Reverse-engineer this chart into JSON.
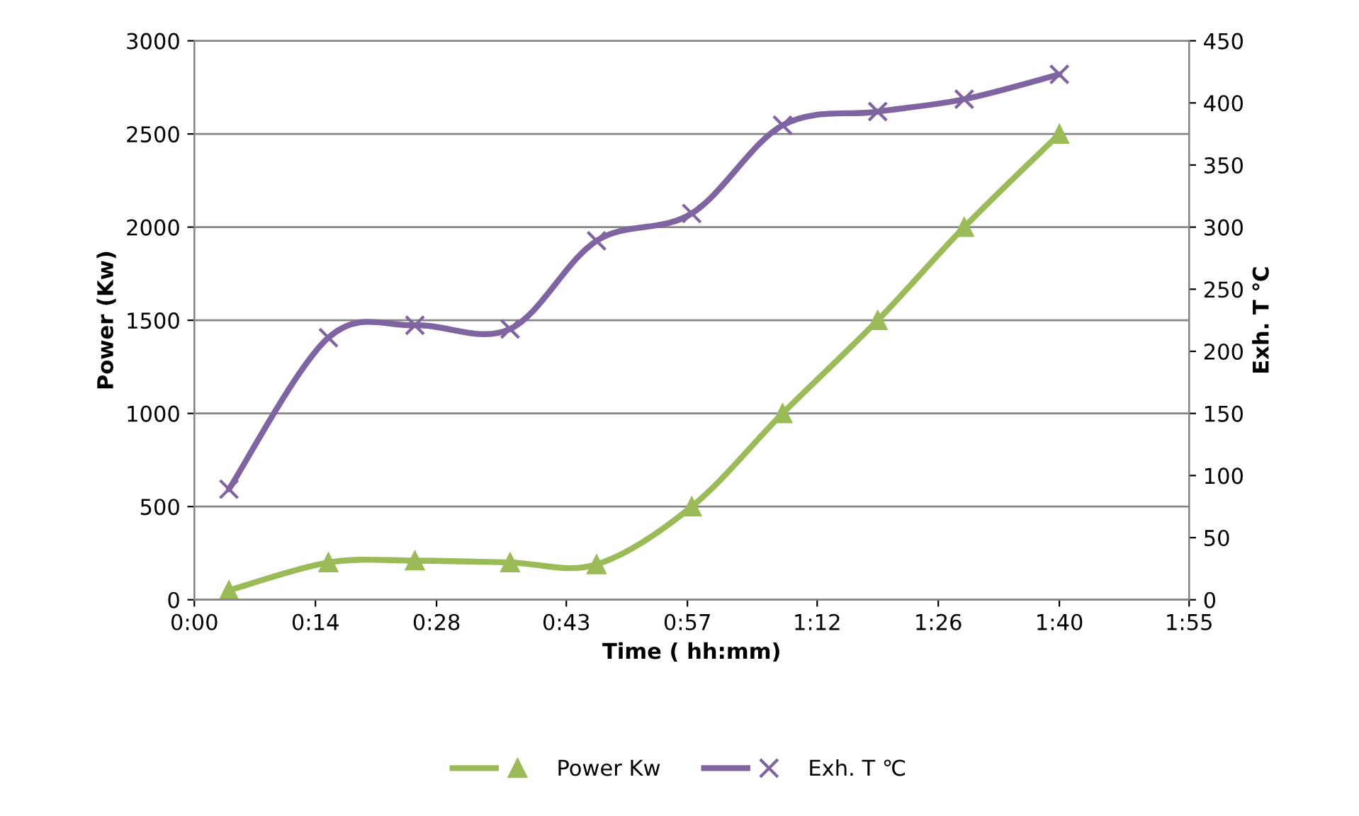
{
  "chart_data": {
    "type": "line",
    "xlabel": "Time ( hh:mm)",
    "ylabel": "Power (Kw)",
    "y2label": "Exh. T ℃",
    "x": [
      4,
      15.5,
      25.5,
      36.5,
      46.5,
      57.5,
      68,
      79,
      89,
      100
    ],
    "series": [
      {
        "name": "Power Kw",
        "color": "#9bbb59",
        "marker": "triangle",
        "values": [
          50,
          200,
          210,
          200,
          190,
          500,
          1000,
          1500,
          2000,
          2500
        ]
      },
      {
        "name": "Exh. T ℃",
        "color": "#8064a2",
        "marker": "cross",
        "axis": "y2",
        "values": [
          89,
          211,
          221,
          218,
          289,
          311,
          382,
          393,
          403,
          423
        ]
      }
    ],
    "xlim": [
      0,
      115
    ],
    "xticks": [
      {
        "value": 0,
        "label": "0:00"
      },
      {
        "value": 14,
        "label": "0:14"
      },
      {
        "value": 28,
        "label": "0:28"
      },
      {
        "value": 43,
        "label": "0:43"
      },
      {
        "value": 57,
        "label": "0:57"
      },
      {
        "value": 72,
        "label": "1:12"
      },
      {
        "value": 86,
        "label": "1:26"
      },
      {
        "value": 100,
        "label": "1:40"
      },
      {
        "value": 115,
        "label": "1:55"
      }
    ],
    "ylim": [
      0,
      3000
    ],
    "yticks": [
      0,
      500,
      1000,
      1500,
      2000,
      2500,
      3000
    ],
    "y2lim": [
      0,
      450
    ],
    "y2ticks": [
      0,
      50,
      100,
      150,
      200,
      250,
      300,
      350,
      400,
      450
    ],
    "grid": "y",
    "legend": "bottom",
    "line_style": "solid"
  }
}
